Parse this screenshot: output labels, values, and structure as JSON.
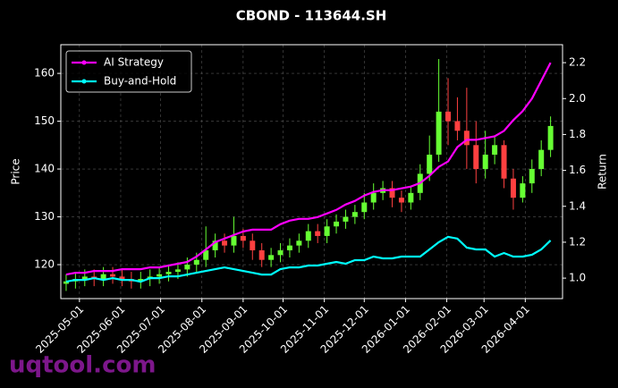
{
  "chart_data": {
    "type": "candlestick",
    "title": "CBOND - 113644.SH",
    "ylabel": "Price",
    "y2label": "Return",
    "watermark": "uqtool.com",
    "x": [
      "2025-04-21",
      "2025-04-28",
      "2025-05-05",
      "2025-05-12",
      "2025-05-19",
      "2025-05-26",
      "2025-06-02",
      "2025-06-09",
      "2025-06-16",
      "2025-06-23",
      "2025-06-30",
      "2025-07-07",
      "2025-07-14",
      "2025-07-21",
      "2025-07-28",
      "2025-08-04",
      "2025-08-11",
      "2025-08-18",
      "2025-08-25",
      "2025-09-01",
      "2025-09-08",
      "2025-09-15",
      "2025-09-22",
      "2025-09-29",
      "2025-10-06",
      "2025-10-13",
      "2025-10-20",
      "2025-10-27",
      "2025-11-03",
      "2025-11-10",
      "2025-11-17",
      "2025-11-24",
      "2025-12-01",
      "2025-12-08",
      "2025-12-15",
      "2025-12-22",
      "2025-12-29",
      "2026-01-05",
      "2026-01-12",
      "2026-01-19",
      "2026-01-26",
      "2026-02-02",
      "2026-02-09",
      "2026-02-16",
      "2026-02-23",
      "2026-03-02",
      "2026-03-09",
      "2026-03-16",
      "2026-03-23",
      "2026-03-30",
      "2026-04-06",
      "2026-04-13",
      "2026-04-20"
    ],
    "open": [
      116,
      116.5,
      117,
      117.5,
      117,
      118,
      117.5,
      117,
      116.5,
      117,
      117.5,
      118,
      118.5,
      119,
      120,
      121,
      123,
      125,
      124,
      126,
      125,
      123,
      121,
      122,
      123,
      124,
      125,
      127,
      126,
      128,
      129,
      130,
      131,
      133,
      135,
      136,
      134,
      133,
      135,
      139,
      143,
      152,
      150,
      148,
      145,
      140,
      143,
      145,
      138,
      134,
      137,
      140,
      144
    ],
    "high": [
      118,
      118.5,
      119,
      119,
      119.5,
      119.5,
      119,
      118.5,
      118.5,
      119,
      119.5,
      120,
      120.5,
      121.5,
      122.5,
      128,
      126.5,
      126.5,
      130,
      127.5,
      126.5,
      124.5,
      123.5,
      124.5,
      125.5,
      126.5,
      128.5,
      128.5,
      129.5,
      130.5,
      131.5,
      132.5,
      135,
      137,
      137.5,
      137.5,
      135.5,
      136.5,
      141,
      147,
      163,
      159,
      155,
      157,
      150,
      148,
      147,
      146,
      140,
      138.5,
      142,
      146,
      151
    ],
    "low": [
      114.5,
      115,
      115.5,
      115.5,
      115.5,
      116,
      115.5,
      115,
      115,
      115.5,
      116,
      116.5,
      117,
      117.5,
      118.5,
      119.5,
      121.5,
      122.5,
      122.5,
      123.5,
      121,
      119.5,
      119.5,
      120.5,
      121.5,
      122.5,
      123.5,
      124.5,
      124.5,
      126.5,
      127.5,
      128.5,
      129.5,
      131.5,
      133.5,
      132,
      131,
      131.5,
      133.5,
      137.5,
      141.5,
      145,
      146,
      140,
      137,
      138,
      141,
      136,
      131.5,
      133,
      135,
      138.5,
      142.5
    ],
    "close": [
      116.5,
      117,
      117.5,
      117,
      118,
      117.5,
      117,
      116.5,
      117,
      117.5,
      118,
      118.5,
      119,
      120,
      121,
      123,
      125,
      124,
      126,
      125,
      123,
      121,
      122,
      123,
      124,
      125,
      127,
      126,
      128,
      129,
      130,
      131,
      133,
      135,
      136,
      134,
      133,
      135,
      139,
      143,
      152,
      150,
      148,
      145,
      140,
      143,
      145,
      138,
      134,
      137,
      140,
      144,
      149
    ],
    "up_color": "#66ff33",
    "down_color": "#ff4040",
    "series": [
      {
        "name": "AI Strategy",
        "color": "#ff00ff",
        "axis": "y2",
        "values": [
          1.02,
          1.03,
          1.03,
          1.04,
          1.04,
          1.04,
          1.05,
          1.05,
          1.05,
          1.06,
          1.06,
          1.07,
          1.08,
          1.09,
          1.12,
          1.16,
          1.2,
          1.22,
          1.24,
          1.26,
          1.27,
          1.27,
          1.27,
          1.3,
          1.32,
          1.33,
          1.33,
          1.34,
          1.36,
          1.38,
          1.41,
          1.43,
          1.46,
          1.48,
          1.49,
          1.49,
          1.5,
          1.51,
          1.53,
          1.57,
          1.62,
          1.65,
          1.73,
          1.77,
          1.77,
          1.78,
          1.79,
          1.82,
          1.88,
          1.93,
          2.0,
          2.1,
          2.2
        ]
      },
      {
        "name": "Buy-and-Hold",
        "color": "#00ffff",
        "axis": "y2",
        "values": [
          0.98,
          0.99,
          0.99,
          1.0,
          0.99,
          1.0,
          0.99,
          0.99,
          0.98,
          1.0,
          1.0,
          1.01,
          1.01,
          1.02,
          1.03,
          1.04,
          1.05,
          1.06,
          1.05,
          1.04,
          1.03,
          1.02,
          1.02,
          1.05,
          1.06,
          1.06,
          1.07,
          1.07,
          1.08,
          1.09,
          1.08,
          1.1,
          1.1,
          1.12,
          1.11,
          1.11,
          1.12,
          1.12,
          1.12,
          1.16,
          1.2,
          1.23,
          1.22,
          1.17,
          1.16,
          1.16,
          1.12,
          1.14,
          1.12,
          1.12,
          1.13,
          1.16,
          1.21
        ]
      }
    ],
    "xlim": [
      "2025-04-17",
      "2026-04-29"
    ],
    "xticks": [
      "2025-05-01",
      "2025-06-01",
      "2025-07-01",
      "2025-08-01",
      "2025-09-01",
      "2025-10-01",
      "2025-11-01",
      "2025-12-01",
      "2026-01-01",
      "2026-02-01",
      "2026-03-01",
      "2026-04-01"
    ],
    "ylim": [
      112.9,
      166
    ],
    "yticks": [
      120,
      130,
      140,
      150,
      160
    ],
    "y2lim": [
      0.886,
      2.3
    ],
    "y2ticks": [
      {
        "value": 1,
        "label": "1.0"
      },
      1.2,
      1.4,
      1.6,
      1.8,
      {
        "value": 2,
        "label": "2.0"
      },
      2.2
    ],
    "grid": true,
    "legend": "upper left"
  }
}
